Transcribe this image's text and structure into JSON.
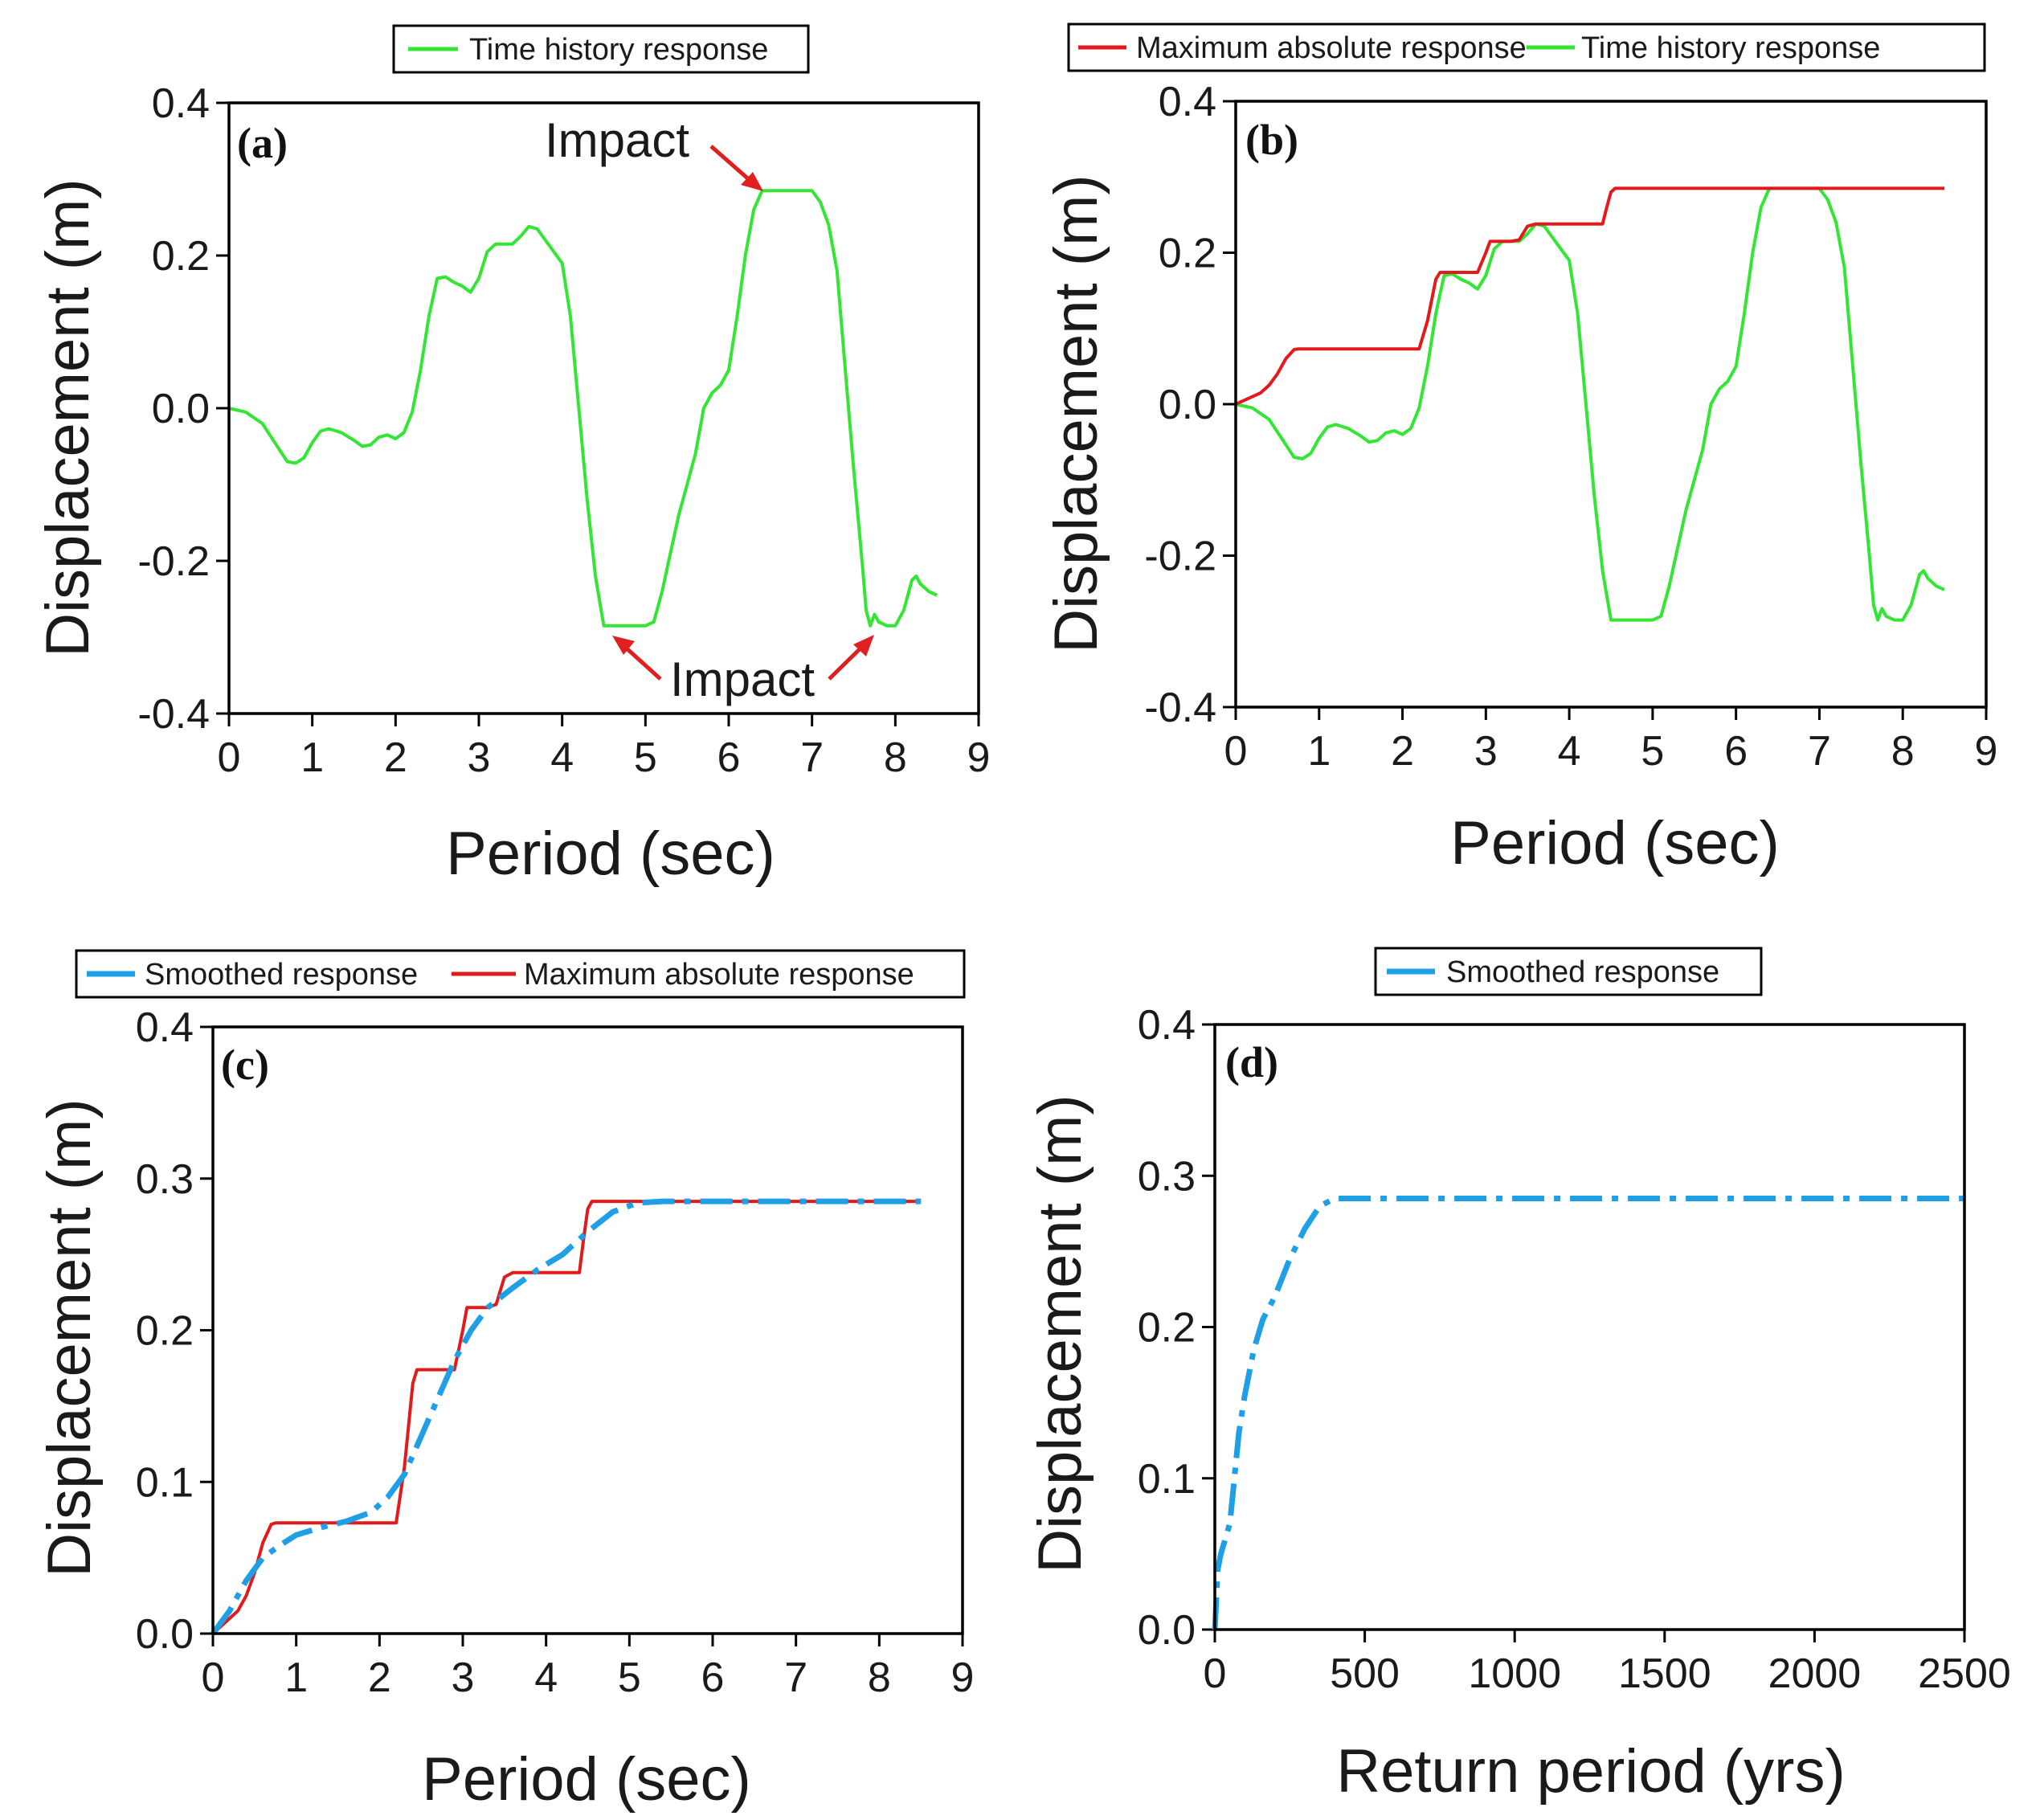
{
  "colors": {
    "green": "#33e633",
    "red": "#e31a1c",
    "blue": "#1e9fe6",
    "axis": "#000000",
    "arrow": "#e02020"
  },
  "chart_data": [
    {
      "id": "a",
      "type": "line",
      "panel_label": "(a)",
      "panel_letter": "a",
      "xlabel": "Period (sec)",
      "ylabel": "Displacement (m)",
      "xlim": [
        0,
        9
      ],
      "ylim": [
        -0.4,
        0.4
      ],
      "xticks": [
        0,
        1,
        2,
        3,
        4,
        5,
        6,
        7,
        8,
        9
      ],
      "yticks": [
        -0.4,
        -0.2,
        0.0,
        0.2,
        0.4
      ],
      "ytick_labels": [
        "-0.4",
        "-0.2",
        "0.0",
        "0.2",
        "0.4"
      ],
      "legend": [
        "Time history response"
      ],
      "annotations": [
        {
          "text": "Impact",
          "arrow_to": [
            6.45,
            0.285
          ]
        },
        {
          "text": "Impact",
          "arrow_to": [
            4.55,
            -0.285
          ]
        },
        {
          "text": "",
          "arrow_to": [
            7.7,
            -0.285
          ]
        }
      ],
      "series": [
        {
          "name": "Time history response",
          "color": "green",
          "style": "solid",
          "x": [
            0,
            0.2,
            0.4,
            0.55,
            0.7,
            0.8,
            0.9,
            1.0,
            1.1,
            1.2,
            1.35,
            1.5,
            1.6,
            1.7,
            1.8,
            1.9,
            2.0,
            2.1,
            2.2,
            2.3,
            2.4,
            2.5,
            2.6,
            2.7,
            2.8,
            2.9,
            3.0,
            3.1,
            3.2,
            3.3,
            3.4,
            3.5,
            3.6,
            3.7,
            3.8,
            3.9,
            4.0,
            4.1,
            4.2,
            4.3,
            4.4,
            4.5,
            4.6,
            4.7,
            4.8,
            4.9,
            5.0,
            5.1,
            5.2,
            5.3,
            5.4,
            5.5,
            5.6,
            5.7,
            5.8,
            5.9,
            6.0,
            6.1,
            6.2,
            6.3,
            6.4,
            6.5,
            6.6,
            6.7,
            6.8,
            6.9,
            7.0,
            7.1,
            7.2,
            7.3,
            7.4,
            7.5,
            7.6,
            7.65,
            7.7,
            7.75,
            7.8,
            7.9,
            8.0,
            8.1,
            8.2,
            8.25,
            8.3,
            8.4,
            8.5
          ],
          "y": [
            0.0,
            -0.005,
            -0.02,
            -0.045,
            -0.07,
            -0.072,
            -0.065,
            -0.045,
            -0.03,
            -0.027,
            -0.032,
            -0.042,
            -0.05,
            -0.048,
            -0.038,
            -0.035,
            -0.04,
            -0.032,
            -0.005,
            0.05,
            0.12,
            0.17,
            0.172,
            0.165,
            0.16,
            0.152,
            0.17,
            0.205,
            0.215,
            0.215,
            0.215,
            0.225,
            0.238,
            0.235,
            0.22,
            0.205,
            0.19,
            0.12,
            0.0,
            -0.12,
            -0.22,
            -0.285,
            -0.285,
            -0.285,
            -0.285,
            -0.285,
            -0.285,
            -0.28,
            -0.24,
            -0.19,
            -0.14,
            -0.1,
            -0.06,
            0.0,
            0.02,
            0.03,
            0.05,
            0.12,
            0.2,
            0.26,
            0.285,
            0.285,
            0.285,
            0.285,
            0.285,
            0.285,
            0.285,
            0.27,
            0.24,
            0.18,
            0.05,
            -0.08,
            -0.2,
            -0.265,
            -0.285,
            -0.27,
            -0.28,
            -0.285,
            -0.285,
            -0.265,
            -0.225,
            -0.22,
            -0.23,
            -0.24,
            -0.245
          ]
        }
      ]
    },
    {
      "id": "b",
      "type": "line",
      "panel_label": "(b)",
      "panel_letter": "b",
      "xlabel": "Period (sec)",
      "ylabel": "Displacement (m)",
      "xlim": [
        0,
        9
      ],
      "ylim": [
        -0.4,
        0.4
      ],
      "xticks": [
        0,
        1,
        2,
        3,
        4,
        5,
        6,
        7,
        8,
        9
      ],
      "yticks": [
        -0.4,
        -0.2,
        0.0,
        0.2,
        0.4
      ],
      "ytick_labels": [
        "-0.4",
        "-0.2",
        "0.0",
        "0.2",
        "0.4"
      ],
      "legend": [
        "Maximum absolute response",
        "Time history response"
      ],
      "series": [
        {
          "name": "Time history response",
          "color": "green",
          "style": "solid",
          "x": [
            0,
            0.2,
            0.4,
            0.55,
            0.7,
            0.8,
            0.9,
            1.0,
            1.1,
            1.2,
            1.35,
            1.5,
            1.6,
            1.7,
            1.8,
            1.9,
            2.0,
            2.1,
            2.2,
            2.3,
            2.4,
            2.5,
            2.6,
            2.7,
            2.8,
            2.9,
            3.0,
            3.1,
            3.2,
            3.3,
            3.4,
            3.5,
            3.6,
            3.7,
            3.8,
            3.9,
            4.0,
            4.1,
            4.2,
            4.3,
            4.4,
            4.5,
            4.6,
            4.7,
            4.8,
            4.9,
            5.0,
            5.1,
            5.2,
            5.3,
            5.4,
            5.5,
            5.6,
            5.7,
            5.8,
            5.9,
            6.0,
            6.1,
            6.2,
            6.3,
            6.4,
            6.5,
            6.6,
            6.7,
            6.8,
            6.9,
            7.0,
            7.1,
            7.2,
            7.3,
            7.4,
            7.5,
            7.6,
            7.65,
            7.7,
            7.75,
            7.8,
            7.9,
            8.0,
            8.1,
            8.2,
            8.25,
            8.3,
            8.4,
            8.5
          ],
          "y": [
            0.0,
            -0.005,
            -0.02,
            -0.045,
            -0.07,
            -0.072,
            -0.065,
            -0.045,
            -0.03,
            -0.027,
            -0.032,
            -0.042,
            -0.05,
            -0.048,
            -0.038,
            -0.035,
            -0.04,
            -0.032,
            -0.005,
            0.05,
            0.12,
            0.17,
            0.172,
            0.165,
            0.16,
            0.152,
            0.17,
            0.205,
            0.215,
            0.215,
            0.215,
            0.225,
            0.238,
            0.235,
            0.22,
            0.205,
            0.19,
            0.12,
            0.0,
            -0.12,
            -0.22,
            -0.285,
            -0.285,
            -0.285,
            -0.285,
            -0.285,
            -0.285,
            -0.28,
            -0.24,
            -0.19,
            -0.14,
            -0.1,
            -0.06,
            0.0,
            0.02,
            0.03,
            0.05,
            0.12,
            0.2,
            0.26,
            0.285,
            0.285,
            0.285,
            0.285,
            0.285,
            0.285,
            0.285,
            0.27,
            0.24,
            0.18,
            0.05,
            -0.08,
            -0.2,
            -0.265,
            -0.285,
            -0.27,
            -0.28,
            -0.285,
            -0.285,
            -0.265,
            -0.225,
            -0.22,
            -0.23,
            -0.24,
            -0.245
          ]
        },
        {
          "name": "Maximum absolute response",
          "color": "red",
          "style": "solid",
          "x": [
            0,
            0.1,
            0.2,
            0.3,
            0.4,
            0.5,
            0.6,
            0.7,
            0.75,
            2.2,
            2.3,
            2.4,
            2.45,
            2.9,
            3.0,
            3.05,
            3.3,
            3.4,
            3.5,
            3.6,
            3.65,
            4.4,
            4.45,
            4.5,
            4.55,
            8.5
          ],
          "y": [
            0.0,
            0.005,
            0.01,
            0.015,
            0.025,
            0.04,
            0.06,
            0.072,
            0.073,
            0.073,
            0.11,
            0.165,
            0.174,
            0.174,
            0.2,
            0.215,
            0.215,
            0.217,
            0.235,
            0.238,
            0.238,
            0.238,
            0.26,
            0.28,
            0.285,
            0.285
          ]
        }
      ]
    },
    {
      "id": "c",
      "type": "line",
      "panel_label": "(c)",
      "panel_letter": "c",
      "xlabel": "Period (sec)",
      "ylabel": "Displacement (m)",
      "xlim": [
        0,
        9
      ],
      "ylim": [
        0.0,
        0.4
      ],
      "xticks": [
        0,
        1,
        2,
        3,
        4,
        5,
        6,
        7,
        8,
        9
      ],
      "yticks": [
        0.0,
        0.1,
        0.2,
        0.3,
        0.4
      ],
      "ytick_labels": [
        "0.0",
        "0.1",
        "0.2",
        "0.3",
        "0.4"
      ],
      "legend": [
        "Smoothed response",
        "Maximum absolute response"
      ],
      "series": [
        {
          "name": "Maximum absolute response",
          "color": "red",
          "style": "solid",
          "x": [
            0,
            0.1,
            0.2,
            0.3,
            0.4,
            0.5,
            0.6,
            0.7,
            0.75,
            2.2,
            2.3,
            2.4,
            2.45,
            2.9,
            3.0,
            3.05,
            3.3,
            3.4,
            3.5,
            3.6,
            3.65,
            4.4,
            4.45,
            4.5,
            4.55,
            8.5
          ],
          "y": [
            0.0,
            0.005,
            0.01,
            0.015,
            0.025,
            0.04,
            0.06,
            0.072,
            0.073,
            0.073,
            0.11,
            0.165,
            0.174,
            0.174,
            0.2,
            0.215,
            0.215,
            0.217,
            0.235,
            0.238,
            0.238,
            0.238,
            0.26,
            0.28,
            0.285,
            0.285
          ]
        },
        {
          "name": "Smoothed response",
          "color": "blue",
          "style": "dashdot",
          "x": [
            0,
            0.2,
            0.4,
            0.6,
            0.8,
            1.0,
            1.3,
            1.6,
            1.9,
            2.1,
            2.3,
            2.5,
            2.7,
            2.9,
            3.1,
            3.3,
            3.6,
            3.9,
            4.2,
            4.5,
            4.8,
            5.1,
            5.4,
            6.0,
            7.0,
            8.0,
            8.5
          ],
          "y": [
            0.0,
            0.015,
            0.035,
            0.05,
            0.058,
            0.065,
            0.07,
            0.074,
            0.08,
            0.09,
            0.105,
            0.13,
            0.155,
            0.18,
            0.2,
            0.215,
            0.228,
            0.24,
            0.25,
            0.265,
            0.278,
            0.284,
            0.285,
            0.285,
            0.285,
            0.285,
            0.285
          ]
        }
      ]
    },
    {
      "id": "d",
      "type": "line",
      "panel_label": "(d)",
      "panel_letter": "d",
      "xlabel": "Return period (yrs)",
      "ylabel": "Displacement (m)",
      "xlim": [
        0,
        2500
      ],
      "ylim": [
        0.0,
        0.4
      ],
      "xticks": [
        0,
        500,
        1000,
        1500,
        2000,
        2500
      ],
      "xtick_labels": [
        "0",
        "500",
        "1000",
        "1500",
        "2000",
        "2500"
      ],
      "yticks": [
        0.0,
        0.1,
        0.2,
        0.3,
        0.4
      ],
      "ytick_labels": [
        "0.0",
        "0.1",
        "0.2",
        "0.3",
        "0.4"
      ],
      "legend": [
        "Smoothed response"
      ],
      "series": [
        {
          "name": "Smoothed response",
          "color": "blue",
          "style": "dashdot",
          "x": [
            0,
            5,
            10,
            20,
            35,
            50,
            65,
            80,
            100,
            130,
            160,
            200,
            250,
            300,
            350,
            400,
            500,
            1000,
            1500,
            2000,
            2500
          ],
          "y": [
            0.0,
            0.02,
            0.04,
            0.05,
            0.06,
            0.07,
            0.1,
            0.13,
            0.155,
            0.185,
            0.205,
            0.22,
            0.245,
            0.265,
            0.28,
            0.285,
            0.285,
            0.285,
            0.285,
            0.285,
            0.285
          ]
        }
      ]
    }
  ]
}
